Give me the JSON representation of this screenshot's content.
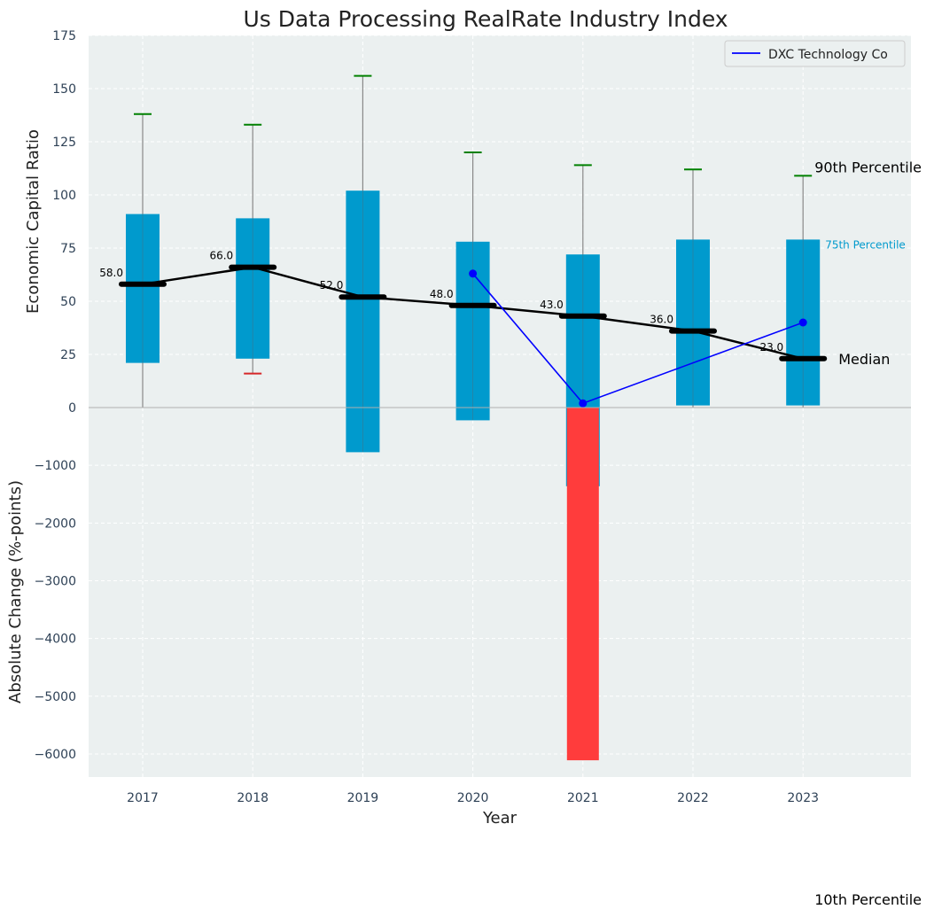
{
  "chart_data": {
    "type": "box",
    "title": "Us Data Processing RealRate Industry Index",
    "xlabel": "Year",
    "ylabel_top": "Economic Capital Ratio",
    "ylabel_bottom": "Absolute Change (%-points)",
    "categories": [
      "2017",
      "2018",
      "2019",
      "2020",
      "2021",
      "2022",
      "2023"
    ],
    "top_ylim": [
      0,
      175
    ],
    "top_yticks": [
      0,
      25,
      50,
      75,
      100,
      125,
      150,
      175
    ],
    "top_ytick_labels": [
      "0",
      "25",
      "50",
      "75",
      "100",
      "125",
      "150",
      "175"
    ],
    "bottom_ylim": [
      -6400,
      0
    ],
    "bottom_yticks": [
      0,
      -1000,
      -2000,
      -3000,
      -4000,
      -5000,
      -6000
    ],
    "bottom_ytick_labels": [
      "0",
      "−1000",
      "−2000",
      "−3000",
      "−4000",
      "−5000",
      "−6000"
    ],
    "boxes": [
      {
        "year": "2017",
        "p10": 0,
        "q1": 21,
        "median": 58,
        "q3": 91,
        "p90": 138,
        "median_label": "58.0",
        "lower_marker": false
      },
      {
        "year": "2018",
        "p10": 16,
        "q1": 23,
        "median": 66,
        "q3": 89,
        "p90": 133,
        "median_label": "66.0",
        "lower_marker": true
      },
      {
        "year": "2019",
        "p10": 0,
        "q1": -21,
        "median": 52,
        "q3": 102,
        "p90": 156,
        "median_label": "52.0",
        "lower_marker": false
      },
      {
        "year": "2020",
        "p10": 0,
        "q1": -6,
        "median": 48,
        "q3": 78,
        "p90": 120,
        "median_label": "48.0",
        "lower_marker": false
      },
      {
        "year": "2021",
        "p10": 0,
        "q1": -37,
        "median": 43,
        "q3": 72,
        "p90": 114,
        "median_label": "43.0",
        "lower_marker": false
      },
      {
        "year": "2022",
        "p10": 0,
        "q1": 1,
        "median": 36,
        "q3": 79,
        "p90": 112,
        "median_label": "36.0",
        "lower_marker": false
      },
      {
        "year": "2023",
        "p10": 0,
        "q1": 1,
        "median": 23,
        "q3": 79,
        "p90": 109,
        "median_label": "23.0",
        "lower_marker": false
      }
    ],
    "series": [
      {
        "name": "DXC Technology Co",
        "x": [
          "2020",
          "2021",
          "2023"
        ],
        "values": [
          63,
          2,
          40
        ]
      }
    ],
    "bottom_bars": [
      {
        "year": "2021",
        "value": -6110
      }
    ],
    "annotations": {
      "p90": "90th Percentile",
      "p75": "75th Percentile",
      "median": "Median",
      "p10": "10th Percentile"
    },
    "legend_position": "upper right",
    "grid": true
  },
  "colors": {
    "box": "#009acd",
    "median": "#000000",
    "whisker": "#888888",
    "p90_cap": "#008000",
    "p10_cap": "#d62728",
    "series": "#0000ff",
    "neg_bar": "#ff3c3c",
    "plot_bg": "#ebf0f0",
    "p75_text": "#009acd"
  }
}
